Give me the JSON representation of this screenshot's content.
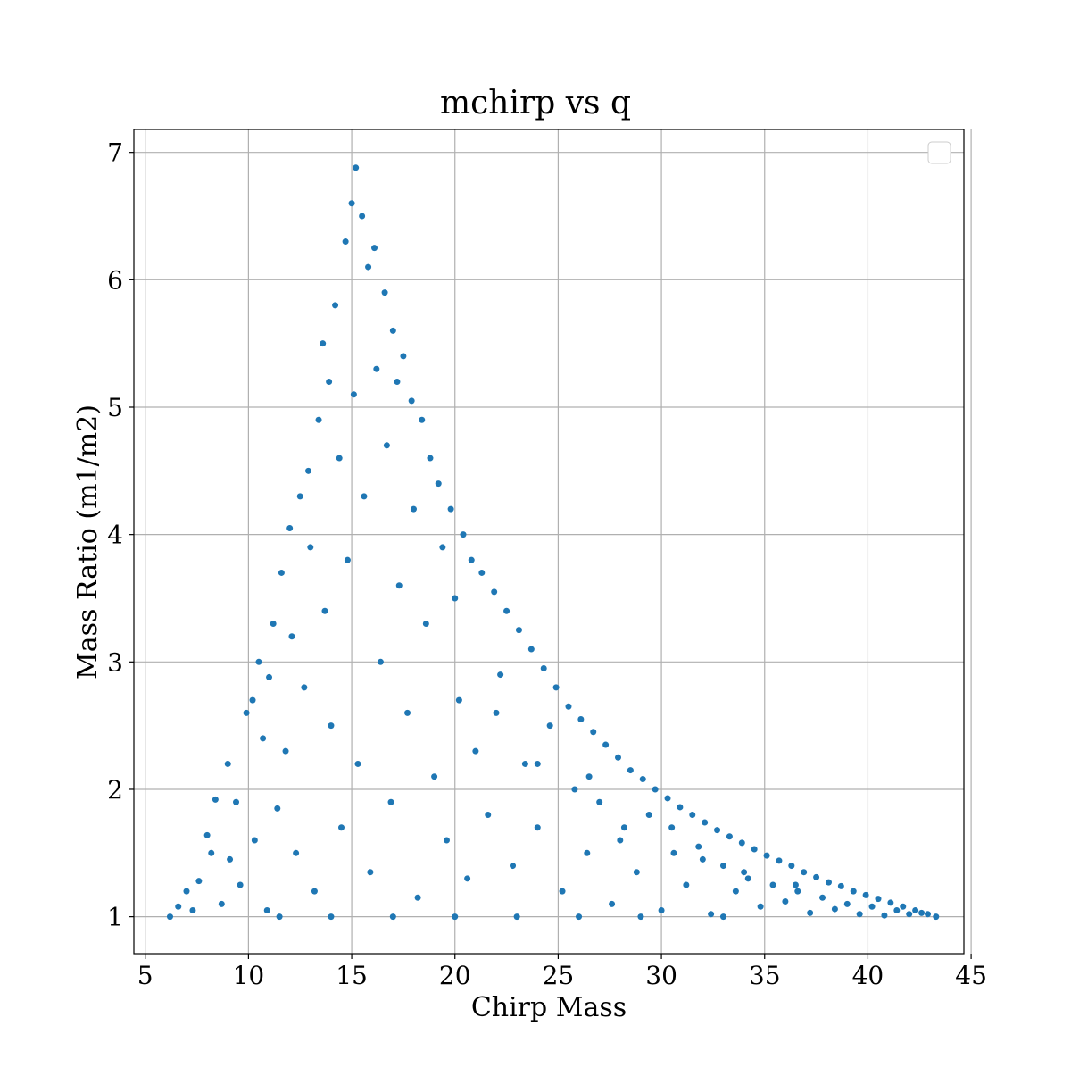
{
  "chart_data": {
    "type": "scatter",
    "title": "mchirp vs q",
    "xlabel": "Chirp Mass",
    "ylabel": "Mass Ratio (m1/m2)",
    "xlim": [
      4.45,
      44.65
    ],
    "ylim": [
      0.71,
      7.18
    ],
    "xticks": [
      5,
      10,
      15,
      20,
      25,
      30,
      35,
      40,
      45
    ],
    "yticks": [
      1,
      2,
      3,
      4,
      5,
      6,
      7
    ],
    "grid": true,
    "legend": "top-right",
    "point_color": "#1f77b4",
    "points": [
      [
        6.2,
        1.0
      ],
      [
        6.6,
        1.08
      ],
      [
        7.0,
        1.2
      ],
      [
        7.3,
        1.05
      ],
      [
        7.6,
        1.28
      ],
      [
        8.0,
        1.64
      ],
      [
        8.2,
        1.5
      ],
      [
        8.4,
        1.92
      ],
      [
        8.7,
        1.1
      ],
      [
        9.0,
        2.2
      ],
      [
        9.1,
        1.45
      ],
      [
        9.4,
        1.9
      ],
      [
        9.6,
        1.25
      ],
      [
        9.9,
        2.6
      ],
      [
        10.2,
        2.7
      ],
      [
        10.3,
        1.6
      ],
      [
        10.5,
        3.0
      ],
      [
        10.7,
        2.4
      ],
      [
        10.9,
        1.05
      ],
      [
        11.0,
        2.88
      ],
      [
        11.2,
        3.3
      ],
      [
        11.4,
        1.85
      ],
      [
        11.6,
        3.7
      ],
      [
        11.8,
        2.3
      ],
      [
        12.0,
        4.05
      ],
      [
        12.1,
        3.2
      ],
      [
        12.3,
        1.5
      ],
      [
        12.5,
        4.3
      ],
      [
        12.7,
        2.8
      ],
      [
        12.9,
        4.5
      ],
      [
        13.0,
        3.9
      ],
      [
        13.2,
        1.2
      ],
      [
        13.4,
        4.9
      ],
      [
        13.6,
        5.5
      ],
      [
        13.7,
        3.4
      ],
      [
        13.9,
        5.2
      ],
      [
        14.0,
        2.5
      ],
      [
        14.2,
        5.8
      ],
      [
        14.4,
        4.6
      ],
      [
        14.5,
        1.7
      ],
      [
        14.7,
        6.3
      ],
      [
        14.8,
        3.8
      ],
      [
        15.0,
        6.6
      ],
      [
        15.1,
        5.1
      ],
      [
        15.2,
        6.88
      ],
      [
        15.3,
        2.2
      ],
      [
        15.5,
        6.5
      ],
      [
        15.6,
        4.3
      ],
      [
        15.8,
        6.1
      ],
      [
        15.9,
        1.35
      ],
      [
        16.1,
        6.25
      ],
      [
        16.2,
        5.3
      ],
      [
        16.4,
        3.0
      ],
      [
        16.6,
        5.9
      ],
      [
        16.7,
        4.7
      ],
      [
        16.9,
        1.9
      ],
      [
        17.0,
        5.6
      ],
      [
        17.2,
        5.2
      ],
      [
        17.3,
        3.6
      ],
      [
        17.5,
        5.4
      ],
      [
        17.7,
        2.6
      ],
      [
        17.9,
        5.05
      ],
      [
        18.0,
        4.2
      ],
      [
        18.2,
        1.15
      ],
      [
        18.4,
        4.9
      ],
      [
        18.6,
        3.3
      ],
      [
        18.8,
        4.6
      ],
      [
        19.0,
        2.1
      ],
      [
        19.2,
        4.4
      ],
      [
        19.4,
        3.9
      ],
      [
        19.6,
        1.6
      ],
      [
        19.8,
        4.2
      ],
      [
        20.0,
        3.5
      ],
      [
        20.2,
        2.7
      ],
      [
        20.4,
        4.0
      ],
      [
        20.6,
        1.3
      ],
      [
        20.8,
        3.8
      ],
      [
        21.0,
        2.3
      ],
      [
        21.3,
        3.7
      ],
      [
        21.6,
        1.8
      ],
      [
        21.9,
        3.55
      ],
      [
        22.2,
        2.9
      ],
      [
        22.5,
        3.4
      ],
      [
        22.8,
        1.4
      ],
      [
        23.1,
        3.25
      ],
      [
        23.4,
        2.2
      ],
      [
        23.7,
        3.1
      ],
      [
        24.0,
        1.7
      ],
      [
        24.3,
        2.95
      ],
      [
        24.6,
        2.5
      ],
      [
        24.9,
        2.8
      ],
      [
        25.2,
        1.2
      ],
      [
        25.5,
        2.65
      ],
      [
        25.8,
        2.0
      ],
      [
        26.1,
        2.55
      ],
      [
        26.4,
        1.5
      ],
      [
        26.7,
        2.45
      ],
      [
        27.0,
        1.9
      ],
      [
        27.3,
        2.35
      ],
      [
        27.6,
        1.1
      ],
      [
        27.9,
        2.25
      ],
      [
        28.2,
        1.7
      ],
      [
        28.5,
        2.15
      ],
      [
        28.8,
        1.35
      ],
      [
        29.1,
        2.08
      ],
      [
        29.4,
        1.8
      ],
      [
        29.7,
        2.0
      ],
      [
        30.0,
        1.05
      ],
      [
        30.3,
        1.93
      ],
      [
        30.6,
        1.5
      ],
      [
        30.9,
        1.86
      ],
      [
        31.2,
        1.25
      ],
      [
        31.5,
        1.8
      ],
      [
        31.8,
        1.55
      ],
      [
        32.1,
        1.74
      ],
      [
        32.4,
        1.02
      ],
      [
        32.7,
        1.68
      ],
      [
        33.0,
        1.4
      ],
      [
        33.3,
        1.63
      ],
      [
        33.6,
        1.2
      ],
      [
        33.9,
        1.58
      ],
      [
        34.2,
        1.3
      ],
      [
        34.5,
        1.53
      ],
      [
        34.8,
        1.08
      ],
      [
        35.1,
        1.48
      ],
      [
        35.4,
        1.25
      ],
      [
        35.7,
        1.44
      ],
      [
        36.0,
        1.12
      ],
      [
        36.3,
        1.4
      ],
      [
        36.6,
        1.2
      ],
      [
        36.9,
        1.35
      ],
      [
        37.2,
        1.03
      ],
      [
        37.5,
        1.31
      ],
      [
        37.8,
        1.15
      ],
      [
        38.1,
        1.27
      ],
      [
        38.4,
        1.06
      ],
      [
        38.7,
        1.24
      ],
      [
        39.0,
        1.1
      ],
      [
        39.3,
        1.2
      ],
      [
        39.6,
        1.02
      ],
      [
        39.9,
        1.17
      ],
      [
        40.2,
        1.08
      ],
      [
        40.5,
        1.14
      ],
      [
        40.8,
        1.01
      ],
      [
        41.1,
        1.11
      ],
      [
        41.4,
        1.05
      ],
      [
        41.7,
        1.08
      ],
      [
        42.0,
        1.02
      ],
      [
        42.3,
        1.05
      ],
      [
        42.6,
        1.03
      ],
      [
        42.9,
        1.02
      ],
      [
        43.3,
        1.0
      ],
      [
        11.5,
        1.0
      ],
      [
        14.0,
        1.0
      ],
      [
        17.0,
        1.0
      ],
      [
        20.0,
        1.0
      ],
      [
        23.0,
        1.0
      ],
      [
        26.0,
        1.0
      ],
      [
        29.0,
        1.0
      ],
      [
        33.0,
        1.0
      ],
      [
        22.0,
        2.6
      ],
      [
        24.0,
        2.2
      ],
      [
        26.5,
        2.1
      ],
      [
        28.0,
        1.6
      ],
      [
        30.5,
        1.7
      ],
      [
        32.0,
        1.45
      ],
      [
        34.0,
        1.35
      ],
      [
        36.5,
        1.25
      ]
    ]
  }
}
